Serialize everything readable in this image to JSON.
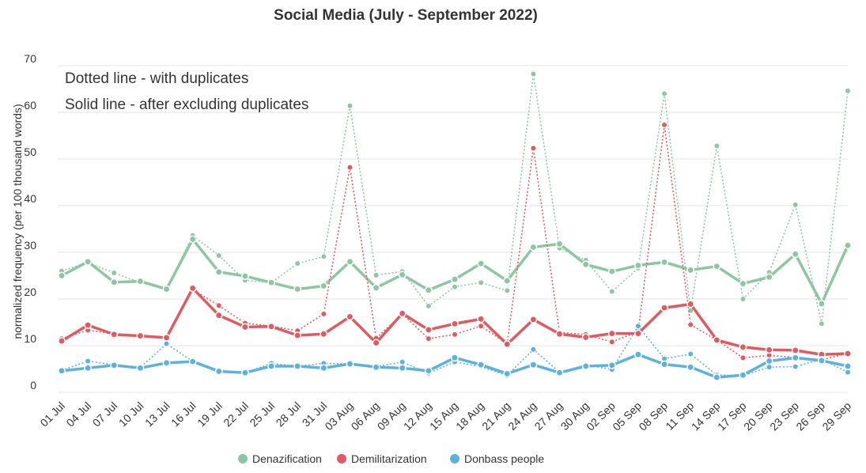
{
  "chart_data": {
    "type": "line",
    "title": "Social Media (July - September 2022)",
    "xlabel": "",
    "ylabel": "normalized frequency (per 100 thousand words)",
    "ylim": [
      0,
      70
    ],
    "yticks": [
      0,
      10,
      20,
      30,
      40,
      50,
      60,
      70
    ],
    "grid": true,
    "legend_position": "bottom",
    "annotations": [
      "Dotted line - with duplicates",
      "Solid line - after excluding duplicates"
    ],
    "categories": [
      "01 Jul",
      "04 Jul",
      "07 Jul",
      "10 Jul",
      "13 Jul",
      "16 Jul",
      "19 Jul",
      "22 Jul",
      "25 Jul",
      "28 Jul",
      "31 Jul",
      "03 Aug",
      "06 Aug",
      "09 Aug",
      "12 Aug",
      "15 Aug",
      "18 Aug",
      "21 Aug",
      "24 Aug",
      "27 Aug",
      "30 Aug",
      "02 Sep",
      "05 Sep",
      "08 Sep",
      "11 Sep",
      "14 Sep",
      "17 Sep",
      "20 Sep",
      "23 Sep",
      "26 Sep",
      "29 Sep"
    ],
    "series": [
      {
        "name": "Denazification",
        "color": "#8ec6a4",
        "with_duplicates": [
          26,
          27.8,
          25.6,
          23.5,
          22.1,
          33.6,
          29.3,
          24,
          23.5,
          27.6,
          29.1,
          61.4,
          25.1,
          25.9,
          18.5,
          22.6,
          23.5,
          21.8,
          68.2,
          30.9,
          28.3,
          21.6,
          26.6,
          64,
          17.5,
          52.8,
          20,
          25.7,
          40.2,
          14.7,
          64.6
        ],
        "after_excluding": [
          25,
          28,
          23.6,
          23.8,
          22.1,
          32.8,
          25.8,
          24.9,
          23.5,
          22.1,
          22.8,
          28,
          22.4,
          25.2,
          21.9,
          24.2,
          27.6,
          23.9,
          31.1,
          31.8,
          27.4,
          25.9,
          27.2,
          27.9,
          26.2,
          27,
          23.3,
          24.7,
          29.6,
          19,
          31.5
        ]
      },
      {
        "name": "Demilitarization",
        "color": "#e05a5f",
        "with_duplicates": [
          11.5,
          13.3,
          12.5,
          12,
          11.6,
          22,
          18.6,
          14.8,
          14.2,
          13.2,
          16.8,
          48.2,
          11.6,
          16.8,
          11.5,
          12.4,
          14.2,
          10.4,
          52.3,
          12.8,
          12.4,
          10.8,
          13,
          57.3,
          14.5,
          11.2,
          7.4,
          7.9,
          7.5,
          6.9,
          8.4
        ],
        "after_excluding": [
          11,
          14.4,
          12.4,
          12.1,
          11.7,
          22.3,
          16.5,
          14,
          14.1,
          12.2,
          12.5,
          16.2,
          10.6,
          16.9,
          13.4,
          14.7,
          15.7,
          10.3,
          15.6,
          12.5,
          11.8,
          12.6,
          12.6,
          18.1,
          18.9,
          11.2,
          9.7,
          9.1,
          9,
          8.1,
          8.3
        ]
      },
      {
        "name": "Donbass people",
        "color": "#5ab2e0",
        "with_duplicates": [
          4.7,
          6.7,
          5.9,
          5.3,
          10.4,
          6.6,
          4.6,
          4.2,
          6.2,
          5.6,
          6.2,
          6.1,
          5.5,
          6.5,
          4.1,
          6.5,
          5.5,
          3.6,
          9.2,
          4.3,
          5.9,
          4.9,
          14.2,
          7.2,
          8.2,
          3.7,
          3.6,
          5.4,
          5.5,
          7.1,
          4.3
        ],
        "after_excluding": [
          4.6,
          5.2,
          5.8,
          5.2,
          6.3,
          6.6,
          4.5,
          4.2,
          5.6,
          5.6,
          5.2,
          6.1,
          5.4,
          5.2,
          4.6,
          7.4,
          5.9,
          4,
          5.9,
          4.2,
          5.6,
          5.8,
          8.1,
          6,
          5.4,
          3.2,
          3.7,
          6.7,
          7.4,
          6.8,
          5.6
        ]
      }
    ]
  }
}
